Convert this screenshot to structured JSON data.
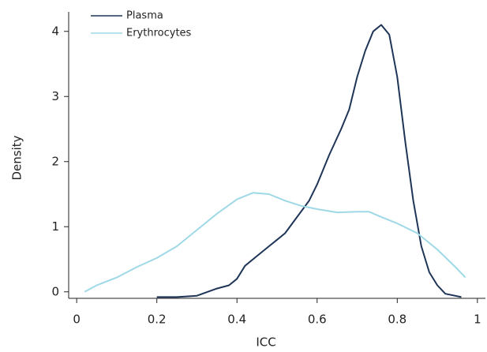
{
  "chart_data": {
    "type": "line",
    "x_label": "ICC",
    "y_label": "Density",
    "xlim": [
      -0.02,
      1.02
    ],
    "ylim": [
      -0.1,
      4.3
    ],
    "xticks": [
      0,
      0.2,
      0.4,
      0.6,
      0.8,
      1
    ],
    "yticks": [
      0,
      1,
      2,
      3,
      4
    ],
    "grid": false,
    "legend": "top-left",
    "series": [
      {
        "name": "Plasma",
        "color": "#1f3557",
        "x": [
          0.2,
          0.25,
          0.3,
          0.35,
          0.38,
          0.4,
          0.42,
          0.45,
          0.48,
          0.5,
          0.52,
          0.55,
          0.58,
          0.6,
          0.63,
          0.66,
          0.68,
          0.7,
          0.72,
          0.74,
          0.76,
          0.78,
          0.8,
          0.82,
          0.84,
          0.86,
          0.88,
          0.9,
          0.92,
          0.96
        ],
        "values": [
          -0.08,
          -0.08,
          -0.06,
          0.05,
          0.1,
          0.2,
          0.4,
          0.55,
          0.7,
          0.8,
          0.9,
          1.15,
          1.4,
          1.65,
          2.1,
          2.5,
          2.8,
          3.3,
          3.7,
          4.0,
          4.1,
          3.95,
          3.3,
          2.3,
          1.4,
          0.7,
          0.3,
          0.1,
          -0.03,
          -0.08
        ]
      },
      {
        "name": "Erythrocytes",
        "color": "#9fd8e6",
        "x": [
          0.02,
          0.05,
          0.1,
          0.15,
          0.2,
          0.25,
          0.3,
          0.35,
          0.4,
          0.44,
          0.48,
          0.52,
          0.56,
          0.6,
          0.65,
          0.7,
          0.73,
          0.76,
          0.8,
          0.85,
          0.9,
          0.95,
          0.97
        ],
        "values": [
          0.0,
          0.1,
          0.22,
          0.38,
          0.52,
          0.7,
          0.95,
          1.2,
          1.42,
          1.52,
          1.5,
          1.4,
          1.32,
          1.27,
          1.22,
          1.23,
          1.23,
          1.15,
          1.05,
          0.9,
          0.65,
          0.35,
          0.22
        ]
      }
    ]
  }
}
